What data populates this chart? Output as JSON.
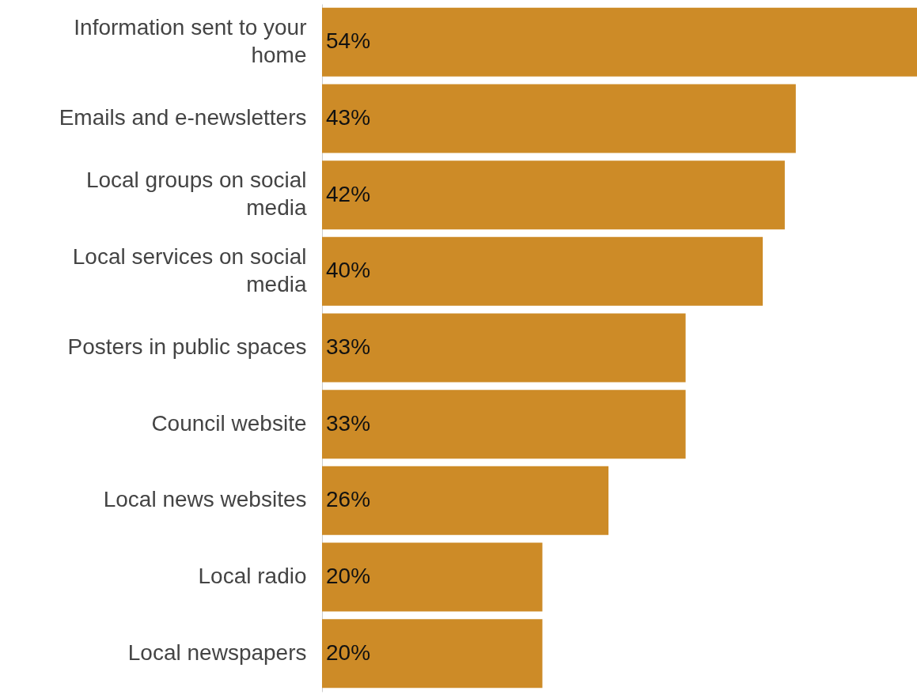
{
  "chart_data": {
    "type": "bar",
    "orientation": "horizontal",
    "categories": [
      "Information sent to your home",
      "Emails and e-newsletters",
      "Local groups on social media",
      "Local services on social media",
      "Posters in public spaces",
      "Council website",
      "Local news websites",
      "Local radio",
      "Local newspapers"
    ],
    "values": [
      54,
      43,
      42,
      40,
      33,
      33,
      26,
      20,
      20
    ],
    "value_labels": [
      "54%",
      "43%",
      "42%",
      "40%",
      "33%",
      "33%",
      "26%",
      "20%",
      "20%"
    ],
    "color": "#cd8b27"
  }
}
